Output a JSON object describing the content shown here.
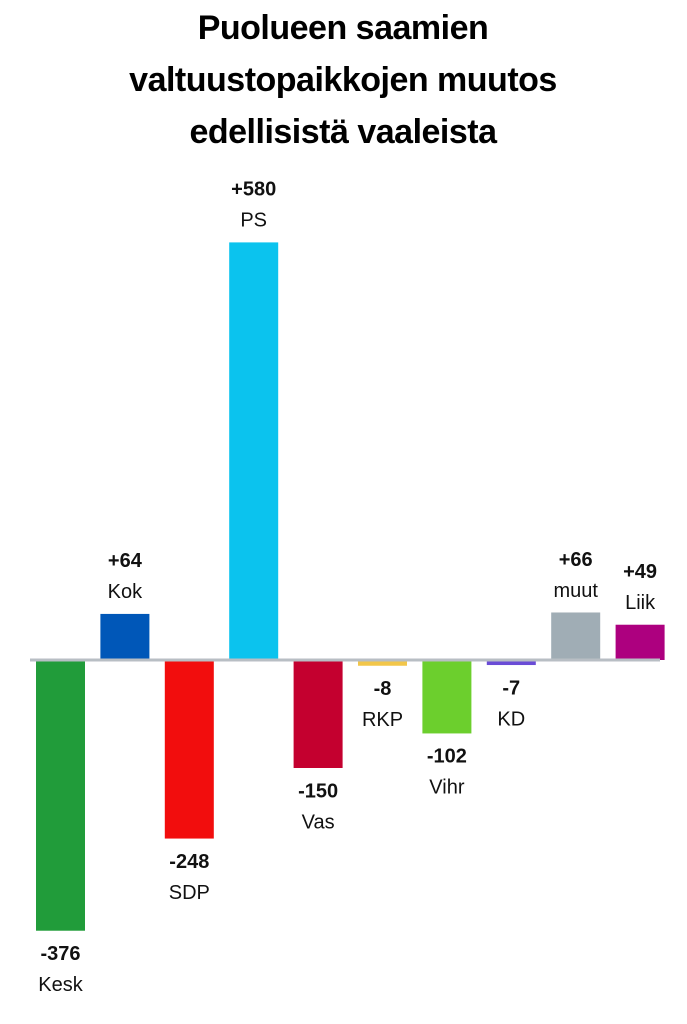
{
  "chart_data": {
    "type": "bar",
    "title": "Puolueen saamien valtuustopaikkojen muutos edellisistä vaaleista",
    "categories": [
      "Kesk",
      "Kok",
      "SDP",
      "PS",
      "Vas",
      "RKP",
      "Vihr",
      "KD",
      "muut",
      "Liik"
    ],
    "values": [
      -376,
      64,
      -248,
      580,
      -150,
      -8,
      -102,
      -7,
      66,
      49
    ],
    "value_labels": [
      "-376",
      "+64",
      "-248",
      "+580",
      "-150",
      "-8",
      "-102",
      "-7",
      "+66",
      "+49"
    ],
    "colors": [
      "#219c3a",
      "#0057b8",
      "#f20d0d",
      "#0bc3ee",
      "#c4002f",
      "#f2c64a",
      "#6ccf2d",
      "#6a4cd6",
      "#a0adb5",
      "#ad007f"
    ]
  }
}
